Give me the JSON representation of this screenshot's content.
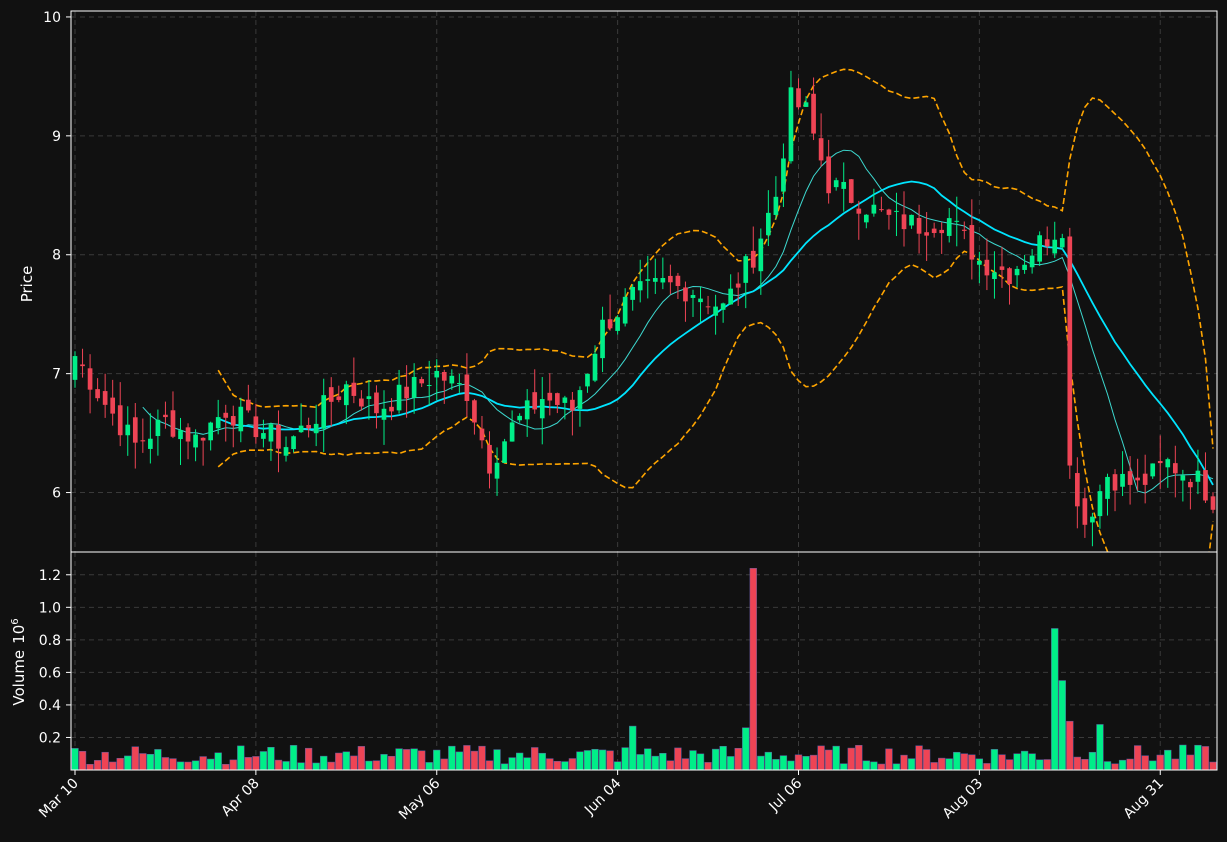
{
  "chart_data": [
    {
      "type": "candlestick",
      "panel": "price",
      "ylabel": "Price",
      "ylim": [
        5.5,
        10.05
      ],
      "yticks": [
        6,
        7,
        8,
        9,
        10
      ],
      "grid": true,
      "colors": {
        "up": "#00ee88",
        "down": "#ee4455",
        "bb": "#ffa500",
        "ma_slow": "#00e5ff",
        "ma_fast": "#3dd9d0"
      },
      "series": [
        {
          "name": "",
          "type": "candlestick",
          "anchors": [
            {
              "i": 0,
              "c": 7.15
            },
            {
              "i": 4,
              "c": 6.75
            },
            {
              "i": 8,
              "c": 6.4
            },
            {
              "i": 12,
              "c": 6.6
            },
            {
              "i": 16,
              "c": 6.45
            },
            {
              "i": 20,
              "c": 6.7
            },
            {
              "i": 24,
              "c": 6.55
            },
            {
              "i": 28,
              "c": 6.4
            },
            {
              "i": 32,
              "c": 6.65
            },
            {
              "i": 36,
              "c": 6.9
            },
            {
              "i": 40,
              "c": 6.7
            },
            {
              "i": 44,
              "c": 6.85
            },
            {
              "i": 48,
              "c": 7.0
            },
            {
              "i": 52,
              "c": 6.85
            },
            {
              "i": 55,
              "c": 6.25
            },
            {
              "i": 58,
              "c": 6.55
            },
            {
              "i": 62,
              "c": 6.8
            },
            {
              "i": 66,
              "c": 6.7
            },
            {
              "i": 70,
              "c": 7.4
            },
            {
              "i": 74,
              "c": 7.65
            },
            {
              "i": 78,
              "c": 7.75
            },
            {
              "i": 82,
              "c": 7.7
            },
            {
              "i": 86,
              "c": 7.55
            },
            {
              "i": 90,
              "c": 8.0
            },
            {
              "i": 93,
              "c": 8.5
            },
            {
              "i": 95,
              "c": 9.3
            },
            {
              "i": 97,
              "c": 9.2
            },
            {
              "i": 100,
              "c": 8.6
            },
            {
              "i": 104,
              "c": 8.45
            },
            {
              "i": 108,
              "c": 8.3
            },
            {
              "i": 112,
              "c": 8.25
            },
            {
              "i": 116,
              "c": 8.3
            },
            {
              "i": 120,
              "c": 7.95
            },
            {
              "i": 124,
              "c": 7.85
            },
            {
              "i": 128,
              "c": 8.1
            },
            {
              "i": 131,
              "c": 8.25
            },
            {
              "i": 132,
              "c": 6.2
            },
            {
              "i": 134,
              "c": 5.75
            },
            {
              "i": 137,
              "c": 6.15
            },
            {
              "i": 141,
              "c": 6.05
            },
            {
              "i": 145,
              "c": 6.25
            },
            {
              "i": 149,
              "c": 6.1
            },
            {
              "i": 151,
              "c": 5.95
            }
          ]
        },
        {
          "name": "",
          "type": "line",
          "role": "moving-average-fast"
        },
        {
          "name": "",
          "type": "line",
          "role": "moving-average-slow"
        },
        {
          "name": "",
          "type": "line",
          "role": "bollinger-upper"
        },
        {
          "name": "",
          "type": "line",
          "role": "bollinger-lower"
        }
      ],
      "x": {
        "start_date": "2024-03-10",
        "count": 152,
        "ticks": [
          {
            "i": 0,
            "label": "Mar 10"
          },
          {
            "i": 24,
            "label": "Apr 08"
          },
          {
            "i": 48,
            "label": "May 06"
          },
          {
            "i": 72,
            "label": "Jun 04"
          },
          {
            "i": 96,
            "label": "Jul 06"
          },
          {
            "i": 120,
            "label": "Aug 03"
          },
          {
            "i": 144,
            "label": "Aug 31"
          }
        ]
      }
    },
    {
      "type": "bar",
      "panel": "volume",
      "ylabel": "Volume",
      "ylabel_exponent": "10",
      "ylabel_exponent_power": "6",
      "ylim": [
        0.0,
        1.34
      ],
      "yticks": [
        "0.2",
        "0.4",
        "0.6",
        "0.8",
        "1.0",
        "1.2"
      ],
      "grid": true,
      "spikes": [
        {
          "i": 90,
          "v": 1.24
        },
        {
          "i": 130,
          "v": 0.87
        },
        {
          "i": 131,
          "v": 0.55
        },
        {
          "i": 132,
          "v": 0.3
        },
        {
          "i": 136,
          "v": 0.28
        },
        {
          "i": 74,
          "v": 0.27
        },
        {
          "i": 89,
          "v": 0.26
        }
      ],
      "base_level": 0.1
    }
  ]
}
